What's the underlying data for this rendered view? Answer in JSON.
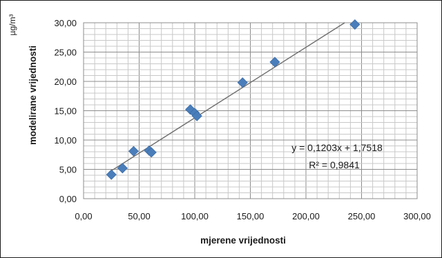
{
  "chart_data": {
    "type": "scatter",
    "xlabel": "mjerene vrijednosti",
    "ylabel": "modelirane vrijednosti",
    "y_unit": "µg/m³",
    "xlim": [
      0,
      300
    ],
    "ylim": [
      0,
      30
    ],
    "x_ticks": [
      "0,00",
      "50,00",
      "100,00",
      "150,00",
      "200,00",
      "250,00",
      "300,00"
    ],
    "y_ticks": [
      "0,00",
      "5,00",
      "10,00",
      "15,00",
      "20,00",
      "25,00",
      "30,00"
    ],
    "x_tick_values": [
      0,
      50,
      100,
      150,
      200,
      250,
      300
    ],
    "y_tick_values": [
      0,
      5,
      10,
      15,
      20,
      25,
      30
    ],
    "grid": "major and minor",
    "points": [
      {
        "x": 25,
        "y": 4.1
      },
      {
        "x": 35,
        "y": 5.2
      },
      {
        "x": 45,
        "y": 8.1
      },
      {
        "x": 59,
        "y": 8.2
      },
      {
        "x": 61,
        "y": 7.9
      },
      {
        "x": 96,
        "y": 15.2
      },
      {
        "x": 100,
        "y": 14.6
      },
      {
        "x": 102,
        "y": 14.1
      },
      {
        "x": 143,
        "y": 19.8
      },
      {
        "x": 172,
        "y": 23.3
      },
      {
        "x": 244,
        "y": 29.7
      }
    ],
    "trendline": {
      "slope": 0.1203,
      "intercept": 1.7518,
      "equation": "y = 0,1203x + 1,7518",
      "r_squared": "R² = 0,9841"
    },
    "colors": {
      "marker": "#4a7ebb",
      "trendline": "#6e6e6e",
      "grid": "#a6a6a6"
    }
  }
}
